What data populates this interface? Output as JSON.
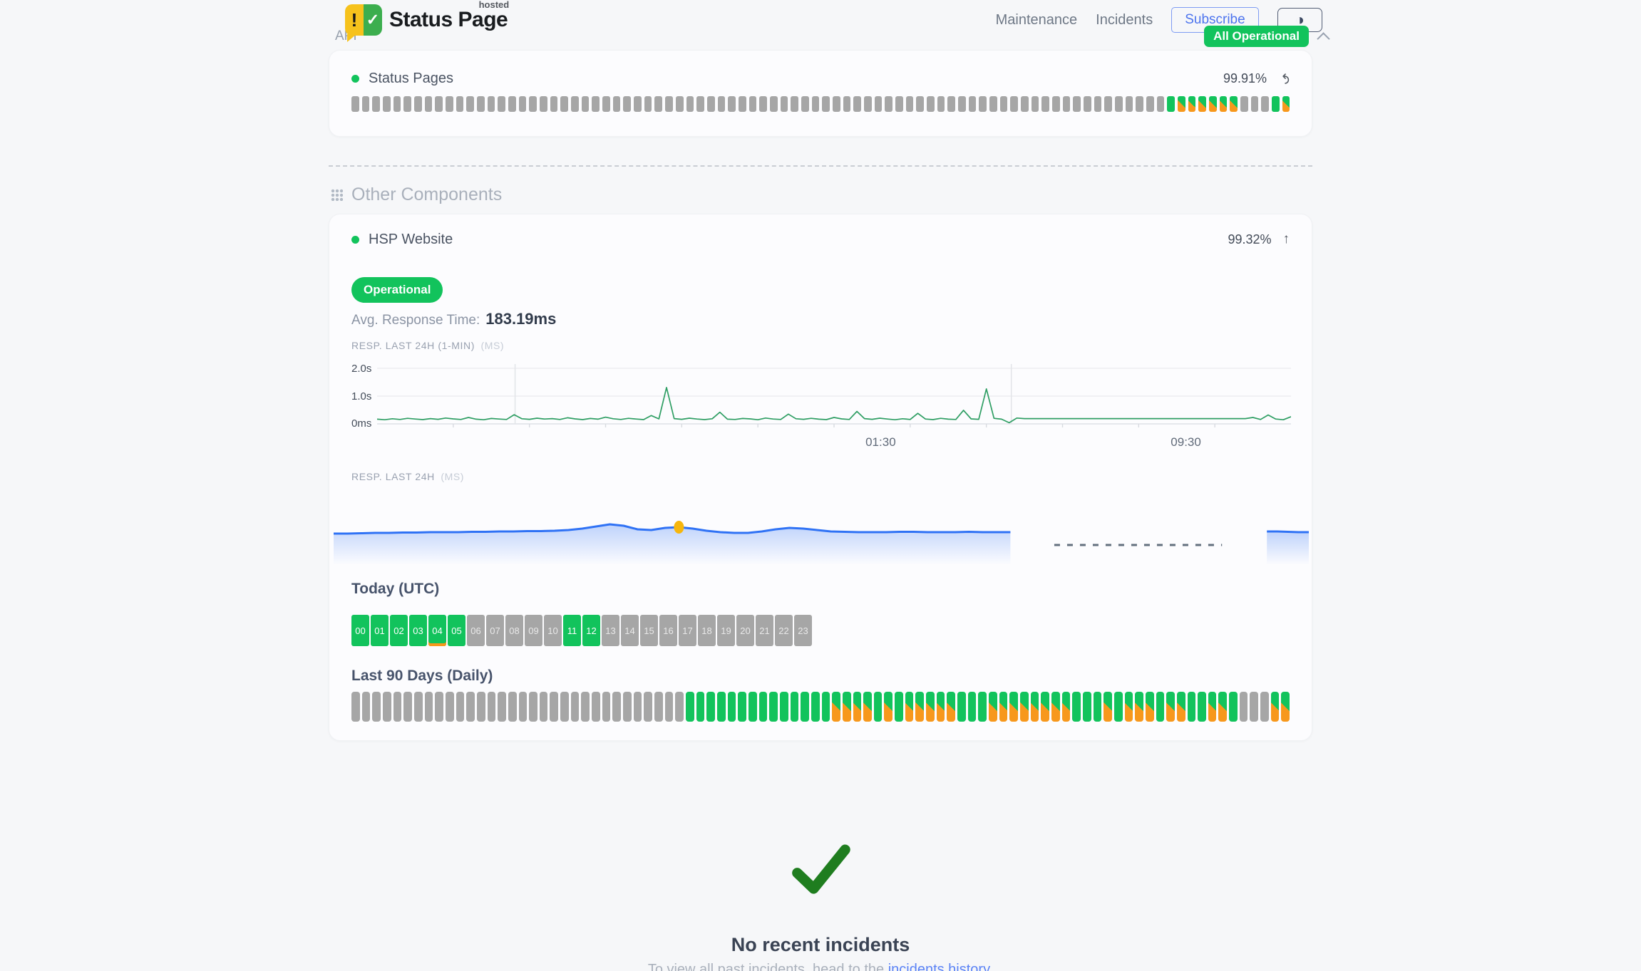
{
  "colors": {
    "green": "#12c35c",
    "orange": "#f7981c",
    "gray_block": "#a6a6a6",
    "chart_green": "#2e9e63",
    "chart_blue": "#2f72f5",
    "marker_yellow": "#f6b60d",
    "link_blue": "#5b83f5",
    "badge_green": "#12c35c"
  },
  "header": {
    "logo": {
      "exclamation": "!",
      "check": "✓",
      "title": "Status Page",
      "superscript": "hosted"
    },
    "nav": {
      "maintenance": "Maintenance",
      "incidents": "Incidents",
      "subscribe": "Subscribe"
    },
    "overall_status": "All Operational"
  },
  "api_section": {
    "label": "API",
    "component_name": "Status Pages",
    "uptime": "99.91%",
    "bar_rle": [
      [
        "gray",
        78
      ],
      [
        "green",
        1
      ],
      [
        "split",
        6
      ],
      [
        "gray",
        3
      ],
      [
        "green",
        1
      ],
      [
        "split",
        1
      ]
    ]
  },
  "other_components": {
    "title": "Other Components",
    "component_name": "HSP Website",
    "uptime": "99.32%",
    "status": "Operational",
    "avg_response_label": "Avg. Response Time:",
    "avg_response_value": "183.19ms",
    "resp_1min_label": "RESP. LAST 24H (1-MIN)",
    "resp_1min_unit": "(MS)",
    "resp_24h_label": "RESP. LAST 24H",
    "resp_24h_unit": "(MS)",
    "today_title": "Today (UTC)",
    "today_hours": [
      {
        "label": "00",
        "state": "green"
      },
      {
        "label": "01",
        "state": "green"
      },
      {
        "label": "02",
        "state": "green"
      },
      {
        "label": "03",
        "state": "green"
      },
      {
        "label": "04",
        "state": "green",
        "marker": "orange-bottom"
      },
      {
        "label": "05",
        "state": "green"
      },
      {
        "label": "06",
        "state": "gray"
      },
      {
        "label": "07",
        "state": "gray"
      },
      {
        "label": "08",
        "state": "gray"
      },
      {
        "label": "09",
        "state": "gray"
      },
      {
        "label": "10",
        "state": "gray"
      },
      {
        "label": "11",
        "state": "green"
      },
      {
        "label": "12",
        "state": "green"
      },
      {
        "label": "13",
        "state": "gray"
      },
      {
        "label": "14",
        "state": "gray"
      },
      {
        "label": "15",
        "state": "gray"
      },
      {
        "label": "16",
        "state": "gray"
      },
      {
        "label": "17",
        "state": "gray"
      },
      {
        "label": "18",
        "state": "gray"
      },
      {
        "label": "19",
        "state": "gray"
      },
      {
        "label": "20",
        "state": "gray"
      },
      {
        "label": "21",
        "state": "gray"
      },
      {
        "label": "22",
        "state": "gray"
      },
      {
        "label": "23",
        "state": "gray"
      }
    ],
    "last90_title": "Last 90 Days (Daily)",
    "last90_rle": [
      [
        "gray",
        32
      ],
      [
        "green",
        14
      ],
      [
        "split",
        4
      ],
      [
        "green",
        1
      ],
      [
        "split",
        1
      ],
      [
        "green",
        1
      ],
      [
        "split",
        5
      ],
      [
        "green",
        3
      ],
      [
        "split",
        8
      ],
      [
        "green",
        3
      ],
      [
        "split",
        1
      ],
      [
        "green",
        1
      ],
      [
        "split",
        3
      ],
      [
        "green",
        1
      ],
      [
        "split",
        2
      ],
      [
        "green",
        2
      ],
      [
        "split",
        2
      ],
      [
        "green",
        1
      ],
      [
        "gray",
        3
      ],
      [
        "split",
        2
      ]
    ]
  },
  "incidents": {
    "title": "No recent incidents",
    "subtitle_prefix": "To view all past incidents, head to the ",
    "link_text": "incidents history",
    "subtitle_suffix": "."
  },
  "chart_data": [
    {
      "type": "line",
      "title": "RESP. LAST 24H (1-MIN) (MS)",
      "ylabel": "response time",
      "ylim": [
        0,
        2000
      ],
      "ytick_labels": [
        "0ms",
        "1.0s",
        "2.0s"
      ],
      "xtick_labels": [
        "01:30",
        "09:30"
      ],
      "xtick_positions": [
        0.551,
        0.885
      ],
      "divider_positions": [
        0.151,
        0.694
      ],
      "grid": true,
      "color": "#2e9e63",
      "values_ms": [
        170,
        150,
        185,
        160,
        200,
        175,
        155,
        190,
        165,
        210,
        180,
        160,
        230,
        170,
        150,
        195,
        175,
        160,
        330,
        185,
        165,
        205,
        175,
        190,
        160,
        220,
        180,
        155,
        195,
        170,
        240,
        185,
        160,
        200,
        175,
        155,
        300,
        180,
        1310,
        190,
        165,
        205,
        175,
        155,
        185,
        420,
        170,
        160,
        195,
        180,
        150,
        210,
        175,
        160,
        350,
        185,
        165,
        200,
        170,
        155,
        230,
        180,
        160,
        450,
        190,
        165,
        205,
        175,
        150,
        185,
        160,
        380,
        175,
        155,
        200,
        170,
        160,
        490,
        180,
        165,
        1260,
        200,
        170,
        40,
        210,
        190,
        190,
        190,
        190,
        190,
        190,
        190,
        190,
        190,
        190,
        190,
        190,
        190,
        190,
        190,
        190,
        190,
        190,
        190,
        190,
        190,
        190,
        190,
        190,
        190,
        190,
        190,
        190,
        190,
        190,
        230,
        160,
        320,
        175,
        150,
        260
      ]
    },
    {
      "type": "area",
      "title": "RESP. LAST 24H (MS)",
      "color": "#2f72f5",
      "segments": [
        {
          "x_start": 0.0,
          "x_end": 0.694,
          "levels": [
            44,
            44,
            44.5,
            45,
            45,
            45.5,
            45.5,
            46,
            46,
            46,
            46.5,
            46.5,
            47,
            47,
            47.5,
            47.5,
            48,
            49,
            51,
            54,
            57,
            55,
            50,
            49,
            52,
            53,
            51,
            48,
            46,
            45,
            45,
            47,
            50,
            52,
            51,
            49,
            47,
            46.5,
            46,
            46,
            46,
            46.5,
            46.5,
            46,
            46,
            46,
            46.5,
            46,
            46,
            46
          ]
        },
        {
          "x_start": 0.957,
          "x_end": 1.0,
          "levels": [
            47,
            47,
            46.5,
            46,
            46
          ]
        }
      ],
      "marker": {
        "segment": 0,
        "index": 25,
        "color": "#f6b60d"
      },
      "gap_line": {
        "x_start": 0.739,
        "x_end": 0.911,
        "y_level": 0.72
      }
    }
  ]
}
